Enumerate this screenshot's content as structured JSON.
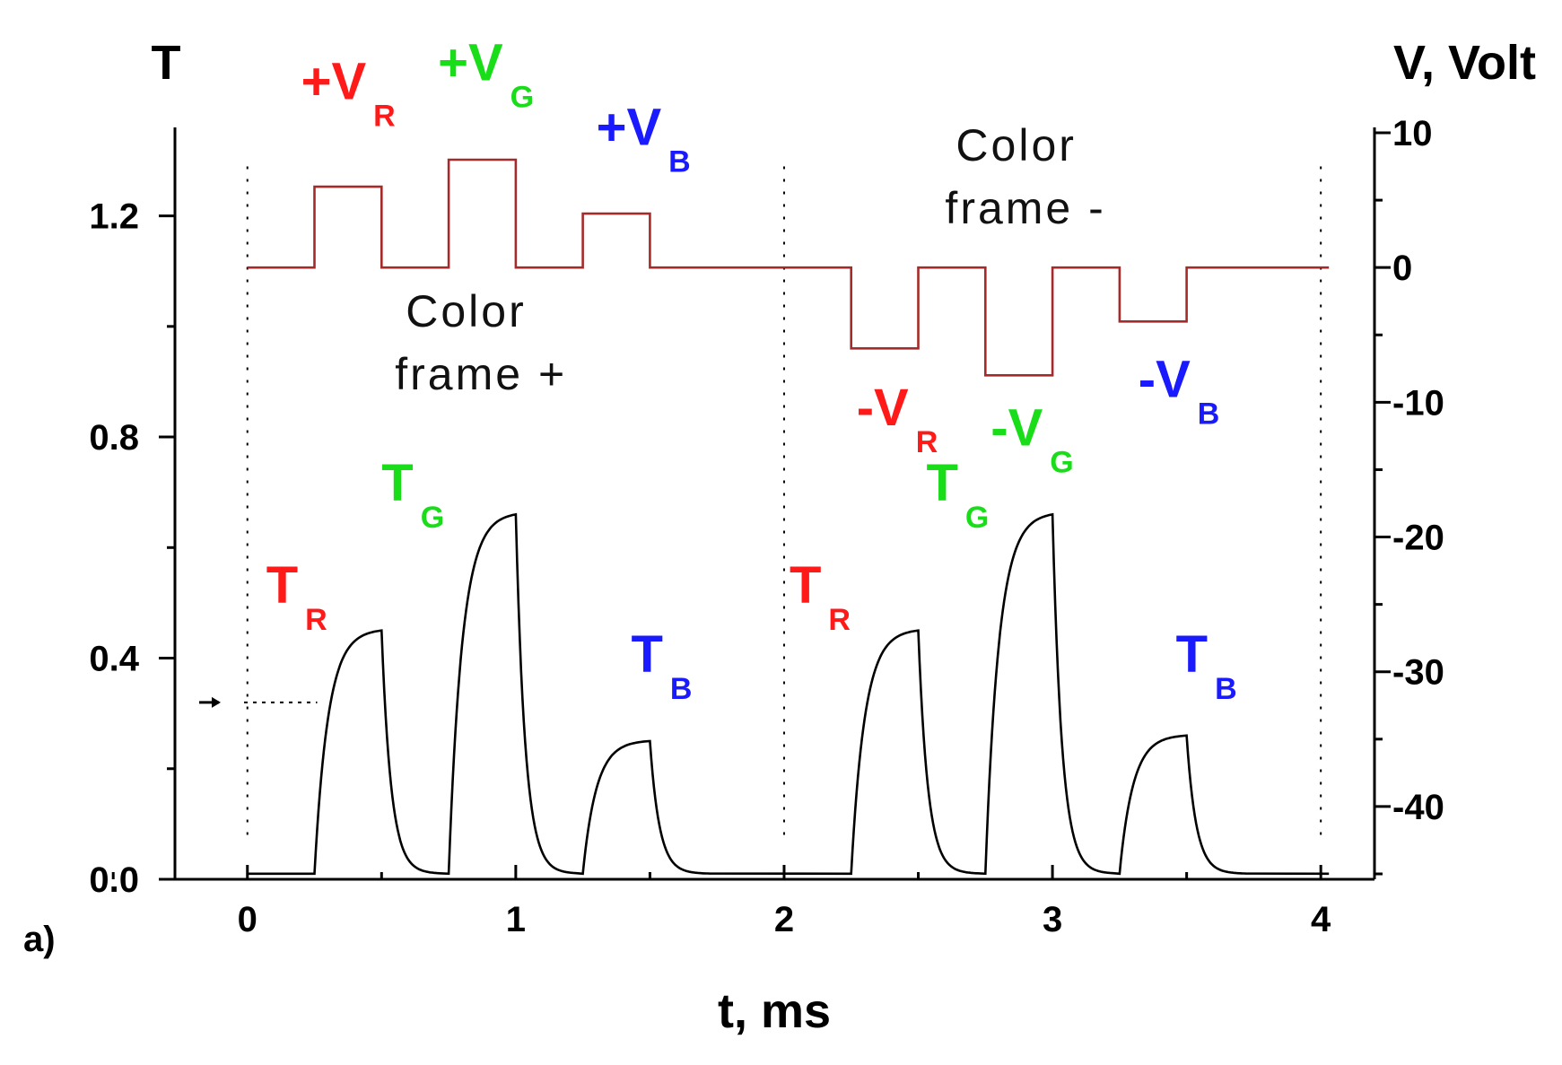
{
  "chart_data": {
    "type": "line",
    "panel_label": "a)",
    "xlabel": "t, ms",
    "ylabel": "T",
    "y2label": "V, Volt",
    "xlim": [
      -0.27,
      4.2
    ],
    "ylim": [
      0.0,
      1.36
    ],
    "y2lim": [
      -45.4,
      10.4
    ],
    "x_ticks": [
      "0",
      "1",
      "2",
      "3",
      "4"
    ],
    "x_tick_values": [
      0,
      1,
      2,
      3,
      4
    ],
    "y_ticks": [
      "0.0",
      "0.4",
      "0.8",
      "1.2"
    ],
    "y_tick_values": [
      0.0,
      0.4,
      0.8,
      1.2
    ],
    "y2_ticks": [
      "10",
      "0",
      "-10",
      "-20",
      "-30",
      "-40"
    ],
    "y2_tick_values": [
      10,
      0,
      -10,
      -20,
      -30,
      -40
    ],
    "frame_boundaries": [
      0,
      2,
      4
    ],
    "ambient_level": 0.32,
    "series": [
      {
        "axis": "left",
        "color": "#000000",
        "pulses": [
          {
            "start": 0.25,
            "end": 0.5,
            "peak": 0.45
          },
          {
            "start": 0.75,
            "end": 1.0,
            "peak": 0.66
          },
          {
            "start": 1.25,
            "end": 1.5,
            "peak": 0.25
          },
          {
            "start": 2.25,
            "end": 2.5,
            "peak": 0.45
          },
          {
            "start": 2.75,
            "end": 3.0,
            "peak": 0.66
          },
          {
            "start": 3.25,
            "end": 3.5,
            "peak": 0.26
          }
        ],
        "baseline": 0.01
      },
      {
        "axis": "right",
        "color": "#a52a2a",
        "x": [
          0,
          0.25,
          0.25,
          0.5,
          0.5,
          0.75,
          0.75,
          1.0,
          1.0,
          1.25,
          1.25,
          1.5,
          1.5,
          2.25,
          2.25,
          2.5,
          2.5,
          2.75,
          2.75,
          3.0,
          3.0,
          3.25,
          3.25,
          3.5,
          3.5,
          4.03
        ],
        "y": [
          0,
          0,
          6,
          6,
          0,
          0,
          8,
          8,
          0,
          0,
          4,
          4,
          0,
          0,
          -6,
          -6,
          0,
          0,
          -8,
          -8,
          0,
          0,
          -4,
          -4,
          0,
          0
        ]
      }
    ],
    "annotations": [
      {
        "main": "+V",
        "sub": "R",
        "color": "#ff1a1a",
        "x": 0.2,
        "y2": 12.5
      },
      {
        "main": "+V",
        "sub": "G",
        "color": "#1add1a",
        "x": 0.71,
        "y2": 13.9
      },
      {
        "main": "+V",
        "sub": "B",
        "color": "#1a1aff",
        "x": 1.3,
        "y2": 9.1
      },
      {
        "main": "-V",
        "sub": "R",
        "color": "#ff1a1a",
        "x": 2.27,
        "y2": -11.7
      },
      {
        "main": "-V",
        "sub": "G",
        "color": "#1add1a",
        "x": 2.77,
        "y2": -13.2
      },
      {
        "main": "-V",
        "sub": "B",
        "color": "#1a1aff",
        "x": 3.32,
        "y2": -9.6
      },
      {
        "main": "T",
        "sub": "R",
        "color": "#ff1a1a",
        "x": 0.07,
        "y": 0.5
      },
      {
        "main": "T",
        "sub": "G",
        "color": "#1add1a",
        "x": 0.5,
        "y": 0.685
      },
      {
        "main": "T",
        "sub": "B",
        "color": "#1a1aff",
        "x": 1.43,
        "y": 0.375
      },
      {
        "main": "T",
        "sub": "R",
        "color": "#ff1a1a",
        "x": 2.02,
        "y": 0.5
      },
      {
        "main": "T",
        "sub": "G",
        "color": "#1add1a",
        "x": 2.53,
        "y": 0.685
      },
      {
        "main": "T",
        "sub": "B",
        "color": "#1a1aff",
        "x": 3.46,
        "y": 0.375
      }
    ],
    "notes": [
      {
        "lines": [
          "Color",
          "frame +"
        ],
        "x": 0.55,
        "y": 1.0
      },
      {
        "lines": [
          "Color",
          "frame -"
        ],
        "x": 2.6,
        "y": 1.3
      }
    ]
  }
}
